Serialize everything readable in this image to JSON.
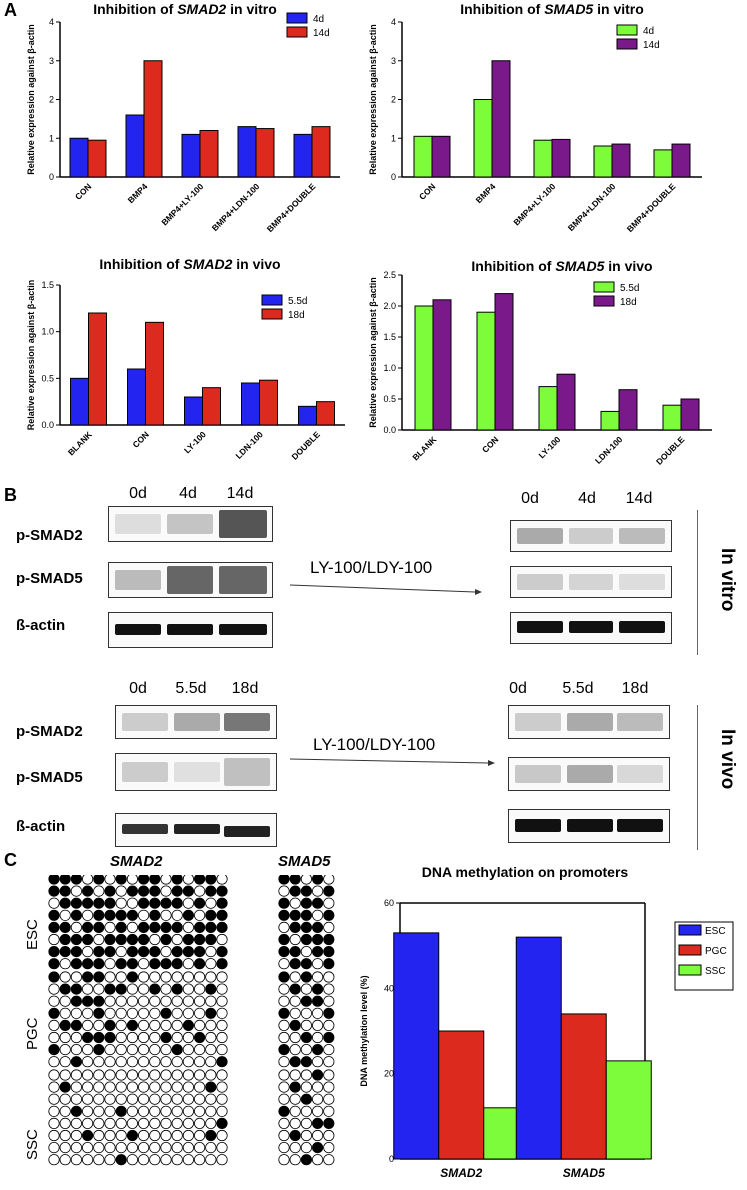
{
  "panels": {
    "a": "A",
    "b": "B",
    "c": "C"
  },
  "colors": {
    "blue": "#2424f0",
    "red": "#dc2a1e",
    "green": "#7cfc3a",
    "purple": "#7a1a8a"
  },
  "chart_data": [
    {
      "id": "smad2_vitro",
      "type": "bar",
      "title_pre": "Inhibition of ",
      "title_gene": "SMAD2",
      "title_post": " in vitro",
      "ylabel": "Relative expression against β-actin",
      "ylim": [
        0,
        4
      ],
      "yticks": [
        0,
        1,
        2,
        3,
        4
      ],
      "categories": [
        "CON",
        "BMP4",
        "BMP4+LY-100",
        "BMP4+LDN-100",
        "BMP4+DOUBLE"
      ],
      "series": [
        {
          "name": "4d",
          "color": "#2424f0",
          "values": [
            1.0,
            1.6,
            1.1,
            1.3,
            1.1
          ]
        },
        {
          "name": "14d",
          "color": "#dc2a1e",
          "values": [
            0.95,
            3.0,
            1.2,
            1.25,
            1.3
          ]
        }
      ]
    },
    {
      "id": "smad5_vitro",
      "type": "bar",
      "title_pre": "Inhibition of ",
      "title_gene": "SMAD5",
      "title_post": " in vitro",
      "ylabel": "Relative expression against β-actin",
      "ylim": [
        0,
        4
      ],
      "yticks": [
        0,
        1,
        2,
        3,
        4
      ],
      "categories": [
        "CON",
        "BMP4",
        "BMP4+LY-100",
        "BMP4+LDN-100",
        "BMP4+DOUBLE"
      ],
      "series": [
        {
          "name": "4d",
          "color": "#7cfc3a",
          "values": [
            1.05,
            2.0,
            0.95,
            0.8,
            0.7
          ]
        },
        {
          "name": "14d",
          "color": "#7a1a8a",
          "values": [
            1.05,
            3.0,
            0.97,
            0.85,
            0.85
          ]
        }
      ]
    },
    {
      "id": "smad2_vivo",
      "type": "bar",
      "title_pre": "Inhibition of ",
      "title_gene": "SMAD2",
      "title_post": " in vivo",
      "ylabel": "Relative expression against β-actin",
      "ylim": [
        0,
        1.5
      ],
      "yticks": [
        "0.0",
        "0.5",
        "1.0",
        "1.5"
      ],
      "categories": [
        "BLANK",
        "CON",
        "LY-100",
        "LDN-100",
        "DOUBLE"
      ],
      "series": [
        {
          "name": "5.5d",
          "color": "#2424f0",
          "values": [
            0.5,
            0.6,
            0.3,
            0.45,
            0.2
          ]
        },
        {
          "name": "18d",
          "color": "#dc2a1e",
          "values": [
            1.2,
            1.1,
            0.4,
            0.48,
            0.25
          ]
        }
      ]
    },
    {
      "id": "smad5_vivo",
      "type": "bar",
      "title_pre": "Inhibition of ",
      "title_gene": "SMAD5",
      "title_post": " in vivo",
      "ylabel": "Relative expression against β-actin",
      "ylim": [
        0,
        2.5
      ],
      "yticks": [
        "0.0",
        "0.5",
        "1.0",
        "1.5",
        "2.0",
        "2.5"
      ],
      "categories": [
        "BLANK",
        "CON",
        "LY-100",
        "LDN-100",
        "DOUBLE"
      ],
      "series": [
        {
          "name": "5.5d",
          "color": "#7cfc3a",
          "values": [
            2.0,
            1.9,
            0.7,
            0.3,
            0.4
          ]
        },
        {
          "name": "18d",
          "color": "#7a1a8a",
          "values": [
            2.1,
            2.2,
            0.9,
            0.65,
            0.5
          ]
        }
      ]
    },
    {
      "id": "methylation",
      "type": "bar",
      "title": "DNA methylation on promoters",
      "ylabel": "DNA methylation level (%)",
      "ylim": [
        0,
        60
      ],
      "yticks": [
        0,
        20,
        40,
        60
      ],
      "categories": [
        "SMAD2",
        "SMAD5"
      ],
      "series": [
        {
          "name": "ESC",
          "color": "#2424f0",
          "values": [
            53,
            52
          ]
        },
        {
          "name": "PGC",
          "color": "#dc2a1e",
          "values": [
            30,
            34
          ]
        },
        {
          "name": "SSC",
          "color": "#7cfc3a",
          "values": [
            12,
            23
          ]
        }
      ]
    }
  ],
  "western": {
    "vitro": {
      "lanes": [
        "0d",
        "4d",
        "14d"
      ],
      "rows": [
        "p-SMAD2",
        "p-SMAD5",
        "ß-actin"
      ],
      "arrow": "LY-100/LDY-100",
      "side": "In vitro"
    },
    "vivo": {
      "lanes": [
        "0d",
        "5.5d",
        "18d"
      ],
      "rows": [
        "p-SMAD2",
        "p-SMAD5",
        "ß-actin"
      ],
      "arrow": "LY-100/LDY-100",
      "side": "In vivo"
    }
  },
  "methylation_map": {
    "gene1": "SMAD2",
    "gene2": "SMAD5",
    "groups": [
      "ESC",
      "PGC",
      "SSC"
    ],
    "smad2": {
      "ESC": [
        "1110101011010110",
        "1101010111011011",
        "0111110011110101",
        "1010111101001011",
        "1101101011110111",
        "0111011110101110",
        "1110110111011101",
        "1011101101110101"
      ],
      "PGC": [
        "1001100100000000",
        "0110011001010010",
        "0011100000000000",
        "1000100000100010",
        "0110010100001000",
        "0001110000100100",
        "1000100000010000",
        "0010000000000001"
      ],
      "SSC": [
        "0000000000000000",
        "0100000000000010",
        "0000000000000000",
        "0010001000000000",
        "0000000000000001",
        "0001000100000010",
        "0000000000000000",
        "0000001000000000"
      ]
    },
    "smad5": {
      "ESC": [
        "11010",
        "01101",
        "10110",
        "11101",
        "01110",
        "10111",
        "11011",
        "01101"
      ],
      "PGC": [
        "10100",
        "01010",
        "00110",
        "10001",
        "01000",
        "00101",
        "10010",
        "01100"
      ],
      "SSC": [
        "00010",
        "01000",
        "00100",
        "10000",
        "00011",
        "01000",
        "00010",
        "00100"
      ]
    }
  }
}
